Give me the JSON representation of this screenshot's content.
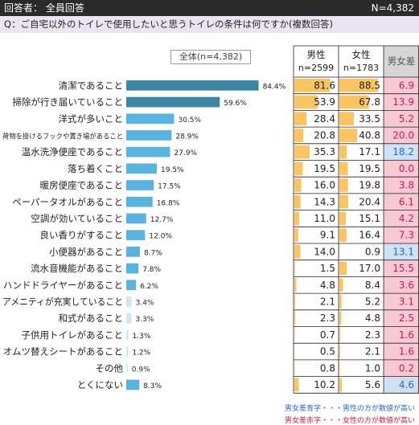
{
  "header": {
    "respondents_label": "回答者： 全員回答",
    "n_label": "N=4,382"
  },
  "question": "Q：ご自宅以外のトイレで使用したいと思うトイレの条件は何ですか(複数回答)",
  "total_label": "全体(n=4,382)",
  "table_headers": {
    "male": "男性",
    "male_n": "n=2599",
    "female": "女性",
    "female_n": "n=1783",
    "diff": "男女差"
  },
  "legend": {
    "blue_note": "男女差青字・・・男性の方が数値が高い",
    "red_note": "男女差赤字・・・女性の方が数値が高い"
  },
  "colors": {
    "bar_dark": "#3d86a3",
    "bar_mid": "#5ab3de",
    "bar_light": "#cfe6f4",
    "cell_bar": "#f7b53b",
    "diff_red_bg": "#f8c9d2",
    "diff_red_text": "#c2185b",
    "diff_blue_bg": "#cfe0f5",
    "diff_blue_text": "#2a6ab8",
    "header_bg": "#2a2a2a",
    "question_bg": "#ebe5f3"
  },
  "chart_data": {
    "type": "bar",
    "orientation": "horizontal",
    "categories": [
      "清潔であること",
      "掃除が行き届いていること",
      "洋式が多いこと",
      "荷物を掛けるフックや置き場があること",
      "温水洗浄便座であること",
      "落ち着くこと",
      "暖房便座であること",
      "ペーパータオルがあること",
      "空調が効いていること",
      "良い香りがすること",
      "小便器があること",
      "流水音機能があること",
      "ハンドドライヤーがあること",
      "アメニティが充実していること",
      "和式があること",
      "子供用トイレがあること",
      "オムツ替えシートがあること",
      "その他",
      "とくにない"
    ],
    "series": [
      {
        "name": "全体(n=4,382)",
        "values": [
          84.4,
          59.6,
          30.5,
          28.9,
          27.9,
          19.5,
          17.5,
          16.8,
          12.7,
          12.0,
          8.7,
          7.8,
          6.2,
          3.4,
          3.3,
          1.3,
          1.2,
          0.9,
          8.3
        ],
        "labels": [
          "84.4%",
          "59.6%",
          "30.5%",
          "28.9%",
          "27.9%",
          "19.5%",
          "17.5%",
          "16.8%",
          "12.7%",
          "12.0%",
          "8.7%",
          "7.8%",
          "6.2%",
          "3.4%",
          "3.3%",
          "1.3%",
          "1.2%",
          "0.9%",
          "8.3%"
        ]
      }
    ],
    "table": {
      "male": [
        "81.6",
        "53.9",
        "28.4",
        "20.8",
        "35.3",
        "19.5",
        "16.0",
        "14.3",
        "11.0",
        "9.1",
        "14.0",
        "1.5",
        "4.8",
        "2.1",
        "2.3",
        "0.7",
        "0.5",
        "0.8",
        "10.2"
      ],
      "female": [
        "88.5",
        "67.8",
        "33.5",
        "40.8",
        "17.1",
        "19.5",
        "19.8",
        "20.4",
        "15.1",
        "16.4",
        "0.9",
        "17.0",
        "8.4",
        "5.2",
        "4.8",
        "2.3",
        "2.1",
        "1.0",
        "5.6"
      ],
      "diff": [
        "6.9",
        "13.9",
        "5.2",
        "20.0",
        "18.2",
        "0.0",
        "3.8",
        "6.1",
        "4.2",
        "7.3",
        "13.1",
        "15.5",
        "3.6",
        "3.1",
        "2.5",
        "1.6",
        "1.6",
        "0.2",
        "4.6"
      ],
      "higher": [
        "f",
        "f",
        "f",
        "f",
        "m",
        "f",
        "f",
        "f",
        "f",
        "f",
        "m",
        "f",
        "f",
        "f",
        "f",
        "f",
        "f",
        "f",
        "m"
      ]
    },
    "xlim": [
      0,
      100
    ],
    "grid": false,
    "legend_position": "top"
  }
}
